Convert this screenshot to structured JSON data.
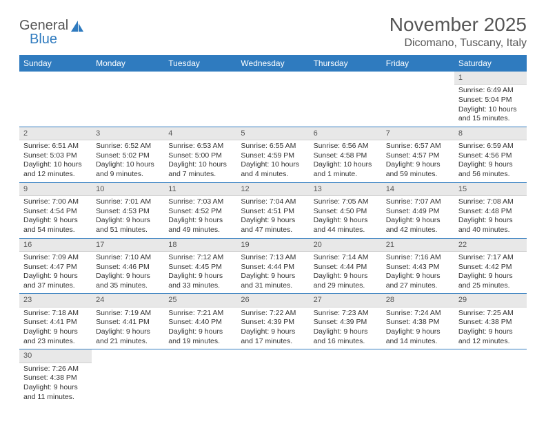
{
  "brand": {
    "name1": "General",
    "name2": "Blue"
  },
  "title": "November 2025",
  "location": "Dicomano, Tuscany, Italy",
  "colors": {
    "header_bg": "#2f7bbf",
    "header_text": "#ffffff",
    "daynum_bg": "#e8e8e8",
    "row_border": "#2f7bbf",
    "text": "#333333",
    "muted": "#555555",
    "page_bg": "#ffffff"
  },
  "weekdays": [
    "Sunday",
    "Monday",
    "Tuesday",
    "Wednesday",
    "Thursday",
    "Friday",
    "Saturday"
  ],
  "weeks": [
    [
      null,
      null,
      null,
      null,
      null,
      null,
      {
        "n": "1",
        "sr": "Sunrise: 6:49 AM",
        "ss": "Sunset: 5:04 PM",
        "dl": "Daylight: 10 hours and 15 minutes."
      }
    ],
    [
      {
        "n": "2",
        "sr": "Sunrise: 6:51 AM",
        "ss": "Sunset: 5:03 PM",
        "dl": "Daylight: 10 hours and 12 minutes."
      },
      {
        "n": "3",
        "sr": "Sunrise: 6:52 AM",
        "ss": "Sunset: 5:02 PM",
        "dl": "Daylight: 10 hours and 9 minutes."
      },
      {
        "n": "4",
        "sr": "Sunrise: 6:53 AM",
        "ss": "Sunset: 5:00 PM",
        "dl": "Daylight: 10 hours and 7 minutes."
      },
      {
        "n": "5",
        "sr": "Sunrise: 6:55 AM",
        "ss": "Sunset: 4:59 PM",
        "dl": "Daylight: 10 hours and 4 minutes."
      },
      {
        "n": "6",
        "sr": "Sunrise: 6:56 AM",
        "ss": "Sunset: 4:58 PM",
        "dl": "Daylight: 10 hours and 1 minute."
      },
      {
        "n": "7",
        "sr": "Sunrise: 6:57 AM",
        "ss": "Sunset: 4:57 PM",
        "dl": "Daylight: 9 hours and 59 minutes."
      },
      {
        "n": "8",
        "sr": "Sunrise: 6:59 AM",
        "ss": "Sunset: 4:56 PM",
        "dl": "Daylight: 9 hours and 56 minutes."
      }
    ],
    [
      {
        "n": "9",
        "sr": "Sunrise: 7:00 AM",
        "ss": "Sunset: 4:54 PM",
        "dl": "Daylight: 9 hours and 54 minutes."
      },
      {
        "n": "10",
        "sr": "Sunrise: 7:01 AM",
        "ss": "Sunset: 4:53 PM",
        "dl": "Daylight: 9 hours and 51 minutes."
      },
      {
        "n": "11",
        "sr": "Sunrise: 7:03 AM",
        "ss": "Sunset: 4:52 PM",
        "dl": "Daylight: 9 hours and 49 minutes."
      },
      {
        "n": "12",
        "sr": "Sunrise: 7:04 AM",
        "ss": "Sunset: 4:51 PM",
        "dl": "Daylight: 9 hours and 47 minutes."
      },
      {
        "n": "13",
        "sr": "Sunrise: 7:05 AM",
        "ss": "Sunset: 4:50 PM",
        "dl": "Daylight: 9 hours and 44 minutes."
      },
      {
        "n": "14",
        "sr": "Sunrise: 7:07 AM",
        "ss": "Sunset: 4:49 PM",
        "dl": "Daylight: 9 hours and 42 minutes."
      },
      {
        "n": "15",
        "sr": "Sunrise: 7:08 AM",
        "ss": "Sunset: 4:48 PM",
        "dl": "Daylight: 9 hours and 40 minutes."
      }
    ],
    [
      {
        "n": "16",
        "sr": "Sunrise: 7:09 AM",
        "ss": "Sunset: 4:47 PM",
        "dl": "Daylight: 9 hours and 37 minutes."
      },
      {
        "n": "17",
        "sr": "Sunrise: 7:10 AM",
        "ss": "Sunset: 4:46 PM",
        "dl": "Daylight: 9 hours and 35 minutes."
      },
      {
        "n": "18",
        "sr": "Sunrise: 7:12 AM",
        "ss": "Sunset: 4:45 PM",
        "dl": "Daylight: 9 hours and 33 minutes."
      },
      {
        "n": "19",
        "sr": "Sunrise: 7:13 AM",
        "ss": "Sunset: 4:44 PM",
        "dl": "Daylight: 9 hours and 31 minutes."
      },
      {
        "n": "20",
        "sr": "Sunrise: 7:14 AM",
        "ss": "Sunset: 4:44 PM",
        "dl": "Daylight: 9 hours and 29 minutes."
      },
      {
        "n": "21",
        "sr": "Sunrise: 7:16 AM",
        "ss": "Sunset: 4:43 PM",
        "dl": "Daylight: 9 hours and 27 minutes."
      },
      {
        "n": "22",
        "sr": "Sunrise: 7:17 AM",
        "ss": "Sunset: 4:42 PM",
        "dl": "Daylight: 9 hours and 25 minutes."
      }
    ],
    [
      {
        "n": "23",
        "sr": "Sunrise: 7:18 AM",
        "ss": "Sunset: 4:41 PM",
        "dl": "Daylight: 9 hours and 23 minutes."
      },
      {
        "n": "24",
        "sr": "Sunrise: 7:19 AM",
        "ss": "Sunset: 4:41 PM",
        "dl": "Daylight: 9 hours and 21 minutes."
      },
      {
        "n": "25",
        "sr": "Sunrise: 7:21 AM",
        "ss": "Sunset: 4:40 PM",
        "dl": "Daylight: 9 hours and 19 minutes."
      },
      {
        "n": "26",
        "sr": "Sunrise: 7:22 AM",
        "ss": "Sunset: 4:39 PM",
        "dl": "Daylight: 9 hours and 17 minutes."
      },
      {
        "n": "27",
        "sr": "Sunrise: 7:23 AM",
        "ss": "Sunset: 4:39 PM",
        "dl": "Daylight: 9 hours and 16 minutes."
      },
      {
        "n": "28",
        "sr": "Sunrise: 7:24 AM",
        "ss": "Sunset: 4:38 PM",
        "dl": "Daylight: 9 hours and 14 minutes."
      },
      {
        "n": "29",
        "sr": "Sunrise: 7:25 AM",
        "ss": "Sunset: 4:38 PM",
        "dl": "Daylight: 9 hours and 12 minutes."
      }
    ],
    [
      {
        "n": "30",
        "sr": "Sunrise: 7:26 AM",
        "ss": "Sunset: 4:38 PM",
        "dl": "Daylight: 9 hours and 11 minutes."
      },
      null,
      null,
      null,
      null,
      null,
      null
    ]
  ]
}
